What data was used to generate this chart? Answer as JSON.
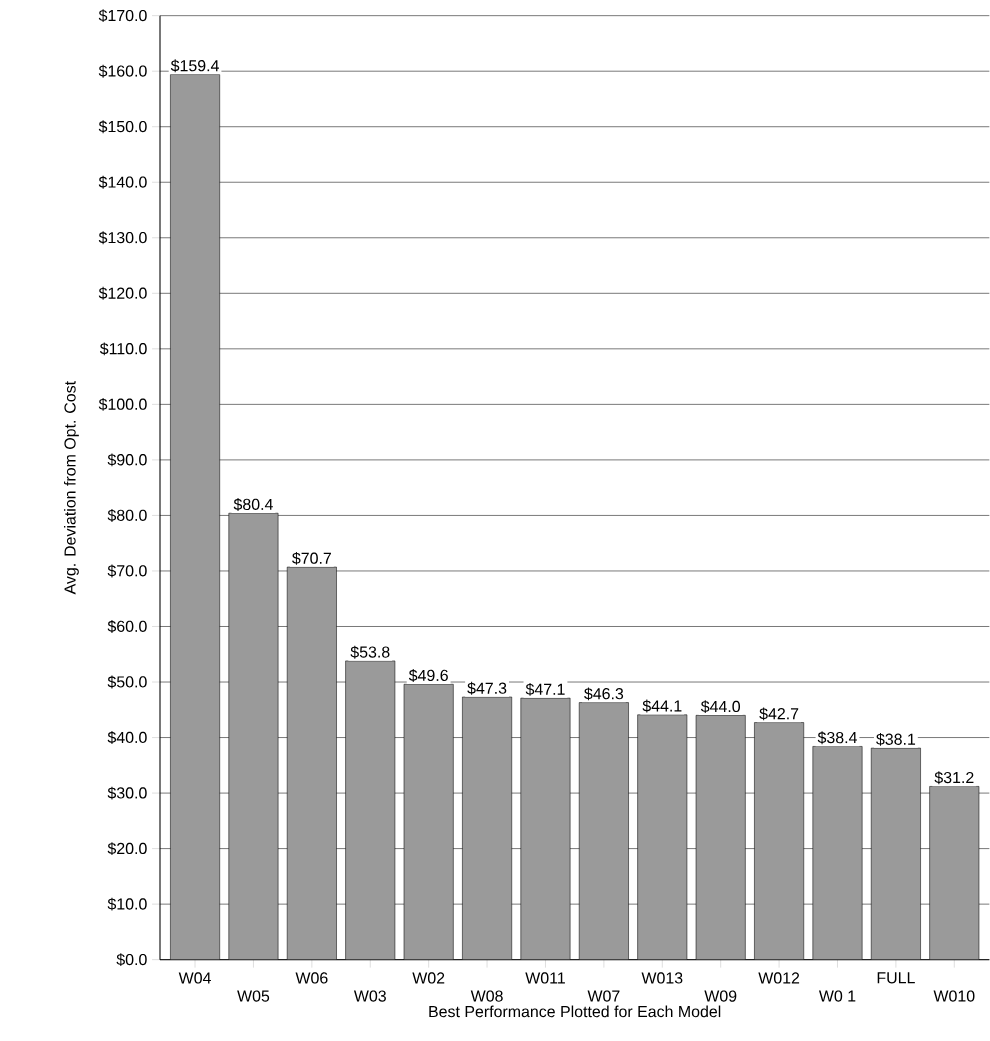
{
  "chart_data": {
    "type": "bar",
    "xlabel": "Best Performance Plotted for Each Model",
    "ylabel": "Avg. Deviation from Opt. Cost",
    "categories": [
      "W04",
      "W05",
      "W06",
      "W03",
      "W02",
      "W08",
      "W011",
      "W07",
      "W013",
      "W09",
      "W012",
      "W0 1",
      "FULL",
      "W010"
    ],
    "values": [
      159.4,
      80.4,
      70.7,
      53.8,
      49.6,
      47.3,
      47.1,
      46.3,
      44.1,
      44.0,
      42.7,
      38.4,
      38.1,
      31.2
    ],
    "value_labels": [
      "$159.4",
      "$80.4",
      "$70.7",
      "$53.8",
      "$49.6",
      "$47.3",
      "$47.1",
      "$46.3",
      "$44.1",
      "$44.0",
      "$42.7",
      "$38.4",
      "$38.1",
      "$31.2"
    ],
    "color": "#9a9a9a",
    "ylim": [
      0,
      170
    ],
    "yticks": [
      {
        "value": 0,
        "label": "$0.0"
      },
      {
        "value": 10,
        "label": "$10.0"
      },
      {
        "value": 20,
        "label": "$20.0"
      },
      {
        "value": 30,
        "label": "$30.0"
      },
      {
        "value": 40,
        "label": "$40.0"
      },
      {
        "value": 50,
        "label": "$50.0"
      },
      {
        "value": 60,
        "label": "$60.0"
      },
      {
        "value": 70,
        "label": "$70.0"
      },
      {
        "value": 80,
        "label": "$80.0"
      },
      {
        "value": 90,
        "label": "$90.0"
      },
      {
        "value": 100,
        "label": "$100.0"
      },
      {
        "value": 110,
        "label": "$110.0"
      },
      {
        "value": 120,
        "label": "$120.0"
      },
      {
        "value": 130,
        "label": "$130.0"
      },
      {
        "value": 140,
        "label": "$140.0"
      },
      {
        "value": 150,
        "label": "$150.0"
      },
      {
        "value": 160,
        "label": "$160.0"
      },
      {
        "value": 170,
        "label": "$170.0"
      }
    ],
    "grid": "y"
  }
}
